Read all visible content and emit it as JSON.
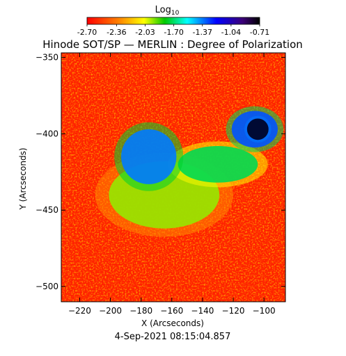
{
  "colorbar": {
    "label": "Log",
    "label_sub": "10",
    "ticks": [
      "-2.70",
      "-2.36",
      "-2.03",
      "-1.70",
      "-1.37",
      "-1.04",
      "-0.71"
    ],
    "range": [
      -2.7,
      -0.71
    ]
  },
  "chart_data": {
    "type": "heatmap",
    "title": "Hinode SOT/SP — MERLIN : Degree of Polarization",
    "xlabel": "X (Arcseconds)",
    "ylabel": "Y (Arcseconds)",
    "xlim": [
      -232,
      -86
    ],
    "ylim": [
      -510,
      -347
    ],
    "xticks": [
      -220,
      -200,
      -180,
      -160,
      -140,
      -120,
      -100
    ],
    "yticks": [
      -500,
      -450,
      -400,
      -350
    ],
    "xtick_labels": [
      "−220",
      "−200",
      "−180",
      "−160",
      "−140",
      "−120",
      "−100"
    ],
    "ytick_labels": [
      "−500",
      "−450",
      "−400",
      "−350"
    ],
    "value_scale": "log10",
    "colormap": [
      "#ff0000",
      "#ff7f00",
      "#ffff00",
      "#00c800",
      "#00ffff",
      "#0000ff",
      "#000000"
    ],
    "features": [
      {
        "kind": "sunspot-umbra",
        "x": -104,
        "y": -397,
        "rx": 7,
        "ry": 7,
        "level": -0.75
      },
      {
        "kind": "sunspot-penumbra",
        "x": -106,
        "y": -397,
        "rx": 15,
        "ry": 12,
        "level": -1.15
      },
      {
        "kind": "plage",
        "x": -175,
        "y": -415,
        "rx": 18,
        "ry": 18,
        "level": -1.2
      },
      {
        "kind": "plage",
        "x": -130,
        "y": -420,
        "rx": 26,
        "ry": 12,
        "level": -1.6
      },
      {
        "kind": "network",
        "x": -165,
        "y": -440,
        "rx": 36,
        "ry": 22,
        "level": -1.9
      }
    ],
    "date": "4-Sep-2021 08:15:04.857"
  }
}
